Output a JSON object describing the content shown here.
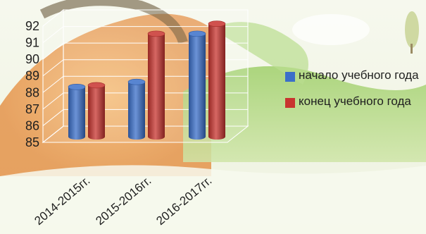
{
  "chart_data": {
    "type": "bar",
    "categories": [
      "2014-2015гг.",
      "2015-2016гг.",
      "2016-2017гг."
    ],
    "series": [
      {
        "name": "начало учебного года",
        "color": "#3b6fc9",
        "values": [
          88.0,
          88.3,
          91.2
        ]
      },
      {
        "name": "конец учебного года",
        "color": "#c8342f",
        "values": [
          88.1,
          91.2,
          91.8
        ]
      }
    ],
    "ylim": [
      85,
      92
    ],
    "yticks": [
      "85",
      "86",
      "87",
      "88",
      "89",
      "90",
      "91",
      "92"
    ],
    "grid": true,
    "legend_position": "right",
    "style": "3d-cylinder"
  }
}
